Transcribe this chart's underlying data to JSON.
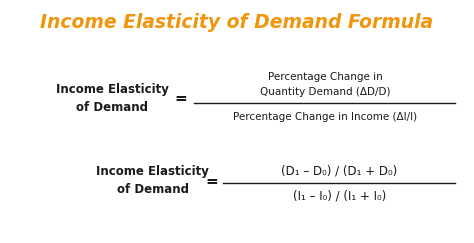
{
  "title": "Income Elasticity of Demand Formula",
  "title_color": "#F0950C",
  "title_fontsize": 13.5,
  "bg_color": "#FFFFFF",
  "text_color": "#1A1A1A",
  "label1_line1": "Income Elasticity",
  "label1_line2": "of Demand",
  "eq1_num_line1": "Percentage Change in",
  "eq1_num_line2": "Quantity Demand (ΔD/D)",
  "eq1_den": "Percentage Change in Income (ΔI/I)",
  "label2_line1": "Income Elasticity",
  "label2_line2": "of Demand",
  "eq2_num": "(D₁ – D₀) / (D₁ + D₀)",
  "eq2_den": "(I₁ – I₀) / (I₁ + I₀)"
}
